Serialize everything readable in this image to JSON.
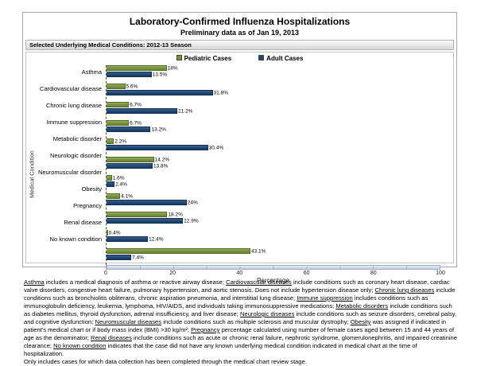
{
  "title": "Laboratory-Confirmed Influenza Hospitalizations",
  "subtitle": "Preliminary data as of Jan 19, 2013",
  "panel_header": "Selected Underlying Medical Conditions: 2012-13 Season",
  "colors": {
    "pediatric": "#77933C",
    "adult": "#1F4875"
  },
  "legend": [
    {
      "label": "Pediatric Cases",
      "color": "#77933C"
    },
    {
      "label": "Adult Cases",
      "color": "#1F4875"
    }
  ],
  "chart_data": {
    "type": "bar",
    "orientation": "horizontal",
    "title": "Laboratory-Confirmed Influenza Hospitalizations",
    "subtitle": "Preliminary data as of Jan 19, 2013",
    "xlabel": "Percentage",
    "ylabel": "Medical Condition",
    "xlim": [
      0,
      100
    ],
    "xticks": [
      0,
      20,
      40,
      60,
      80,
      100
    ],
    "legend_position": "top",
    "categories": [
      "Asthma",
      "Cardiovascular disease",
      "Chronic lung disease",
      "Immune suppression",
      "Metabolic disorder",
      "Neurologic disorder",
      "Neuromuscular disorder",
      "Obesity",
      "Pregnancy",
      "Renal disease",
      "No known condition"
    ],
    "series": [
      {
        "name": "Pediatric Cases",
        "color": "#77933C",
        "values": [
          18,
          5.6,
          6.7,
          6.7,
          2.2,
          14.2,
          1.6,
          4.1,
          18.2,
          0.4,
          43.1
        ],
        "labels": [
          "18%",
          "5.6%",
          "6.7%",
          "6.7%",
          "2.2%",
          "14.2%",
          "1.6%",
          "4.1%",
          "18.2%",
          "0.4%",
          "43.1%"
        ]
      },
      {
        "name": "Adult Cases",
        "color": "#1F4875",
        "values": [
          13.5,
          31.8,
          21.2,
          13.2,
          30.4,
          13.8,
          2.4,
          24,
          22.9,
          12.4,
          7.4
        ],
        "labels": [
          "13.5%",
          "31.8%",
          "21.2%",
          "13.2%",
          "30.4%",
          "13.8%",
          "2.4%",
          "24%",
          "22.9%",
          "12.4%",
          "7.4%"
        ]
      }
    ]
  },
  "footnotes": {
    "segments": [
      {
        "u": "Asthma",
        "t": " includes a medical diagnosis of asthma or reactive airway disease; "
      },
      {
        "u": "Cardiovascular diseases",
        "t": " include conditions such as coronary heart disease, cardiac valve disorders, congestive heart failure, pulmonary hypertension, and aortic stenosis.  Does not include hypertension disease only;  "
      },
      {
        "u": "Chronic lung diseases",
        "t": " include conditions such as bronchiolitis obliterans, chronic aspiration pneumonia, and interstitial lung disease;  "
      },
      {
        "u": "Immune suppression",
        "t": " includes conditions such as immunoglobulin deficiency, leukemia, lymphoma, HIV/AIDS, and individuals taking immunosuppressive medications;  "
      },
      {
        "u": "Metabolic disorders",
        "t": " include conditions such as diabetes mellitus, thyroid dysfunction, adrenal insufficiency, and liver disease;  "
      },
      {
        "u": "Neurologic diseases",
        "t": " include conditions such as seizure disorders, cerebral palsy, and cognitive dysfunction;  "
      },
      {
        "u": "Neuromuscular diseases",
        "t": " include conditions such as multiple sclerosis and muscular dystrophy;  "
      },
      {
        "u": "Obesity",
        "t": " was assigned if indicated in patient's medical chart or if body mass index (BMI) >30 kg/m²;  "
      },
      {
        "u": "Pregnancy",
        "t": " percentage calculated using number of female cases aged between 15 and 44 years of age as the denominator;  "
      },
      {
        "u": "Renal diseases",
        "t": " include conditions such as acute or chronic renal failure, nephrotic syndrome, glomerulonephritis, and impaired creatinine clearance;  "
      },
      {
        "u": "No known condition",
        "t": " indicates that the case did not have any known underlying medical condition indicated in medical chart at the time of hospitalization."
      }
    ],
    "line2": "Only includes cases for which data collection has been completed through the medical chart review stage."
  }
}
